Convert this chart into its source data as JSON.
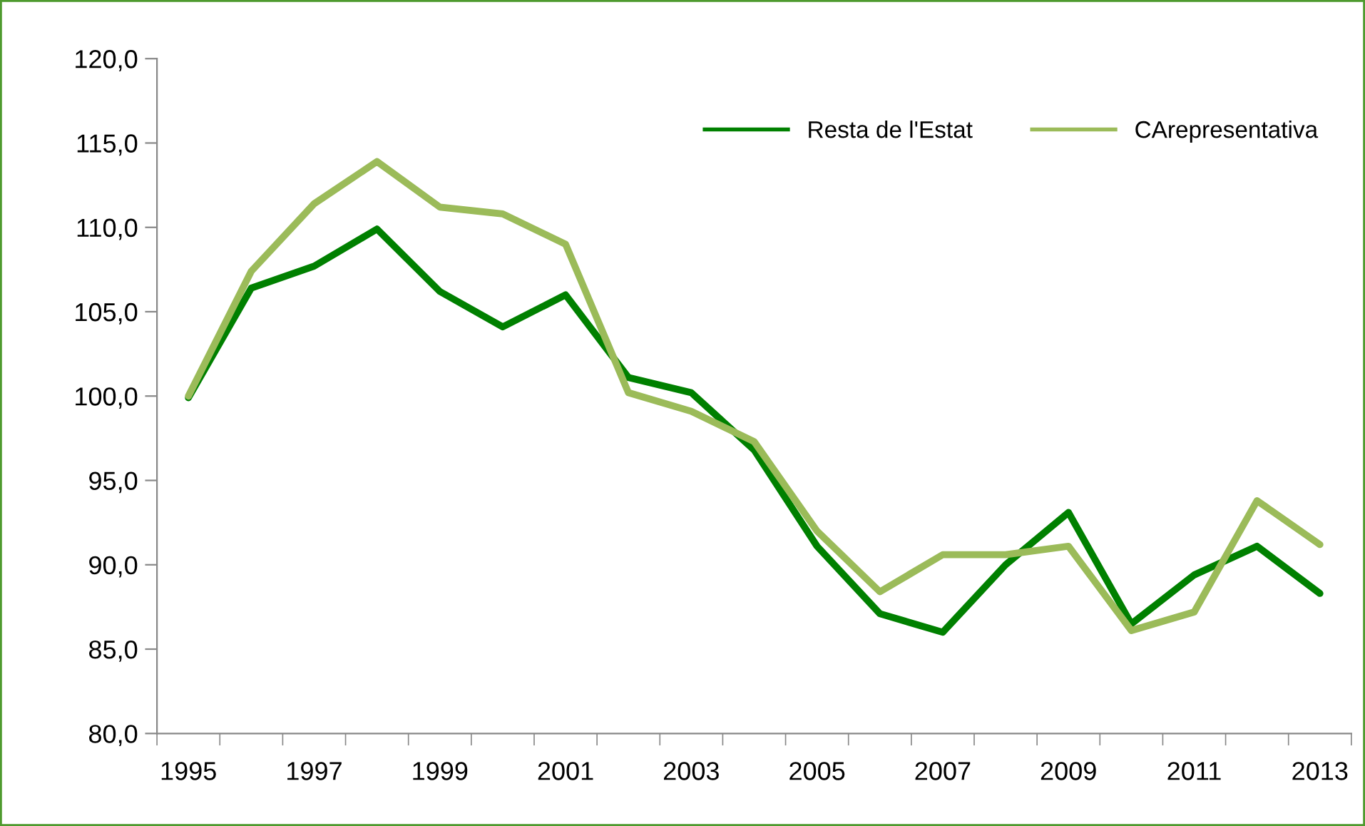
{
  "chart_data": {
    "type": "line",
    "categories": [
      "1995",
      null,
      "1997",
      null,
      "1999",
      null,
      "2001",
      null,
      "2003",
      null,
      "2005",
      null,
      "2007",
      null,
      "2009",
      null,
      "2011",
      null,
      "2013"
    ],
    "series": [
      {
        "name": "Resta de l'Estat",
        "color": "#008000",
        "values": [
          99.9,
          106.4,
          107.7,
          109.9,
          106.2,
          104.1,
          106.0,
          101.1,
          100.2,
          96.8,
          91.1,
          87.1,
          86.0,
          90.0,
          93.1,
          86.5,
          89.4,
          91.1,
          88.3
        ]
      },
      {
        "name": "CArepresentativa",
        "color": "#9bbb59",
        "values": [
          100.0,
          107.4,
          111.4,
          113.9,
          111.2,
          110.8,
          109.0,
          100.2,
          99.1,
          97.3,
          92.0,
          88.4,
          90.6,
          90.6,
          91.1,
          86.1,
          87.2,
          93.8,
          91.2
        ]
      }
    ],
    "ylim": [
      80,
      120
    ],
    "yticks": [
      {
        "value": 80,
        "label": "80,0"
      },
      {
        "value": 85,
        "label": "85,0"
      },
      {
        "value": 90,
        "label": "90,0"
      },
      {
        "value": 95,
        "label": "95,0"
      },
      {
        "value": 100,
        "label": "100,0"
      },
      {
        "value": 105,
        "label": "105,0"
      },
      {
        "value": 110,
        "label": "110,0"
      },
      {
        "value": 115,
        "label": "115,0"
      },
      {
        "value": 120,
        "label": "120,0"
      }
    ],
    "legend": "top right",
    "line_style": "solid"
  }
}
